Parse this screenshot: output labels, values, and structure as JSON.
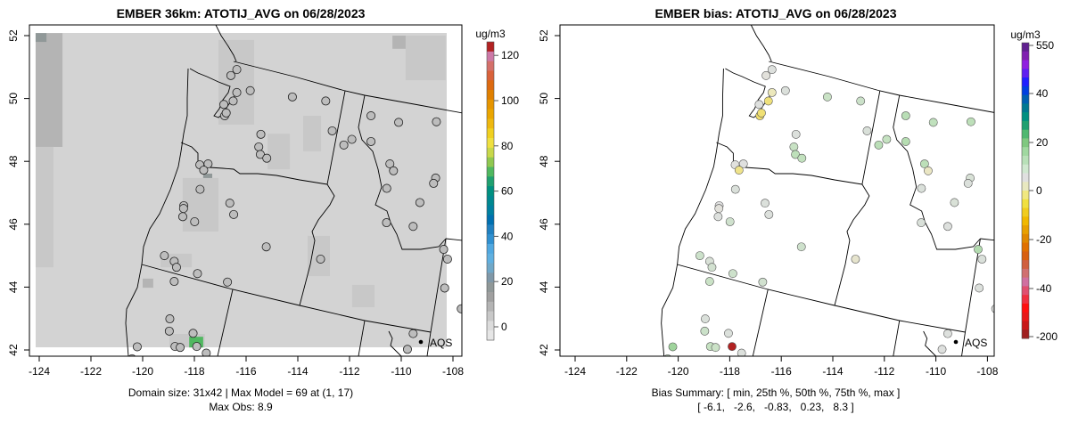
{
  "chart_data": [
    {
      "type": "scatter",
      "subtype": "gridded-map-with-stations",
      "title": "EMBER 36km: ATOTIJ_AVG on 06/28/2023",
      "xlabel": "",
      "ylabel": "",
      "xlim": [
        -124,
        -108
      ],
      "ylim": [
        42,
        52
      ],
      "x_ticks": [
        "-124",
        "-122",
        "-120",
        "-118",
        "-116",
        "-114",
        "-112",
        "-110",
        "-108"
      ],
      "y_ticks": [
        "42",
        "44",
        "46",
        "48",
        "50",
        "52"
      ],
      "colorbar": {
        "unit": "ug/m3",
        "range": [
          -6,
          126
        ],
        "ticks": [
          "0",
          "20",
          "40",
          "60",
          "80",
          "100",
          "120"
        ],
        "palette": [
          "#e6e6e6",
          "#dcdcdc",
          "#c8c8c8",
          "#b4b4b4",
          "#a0a0a0",
          "#909898",
          "#8098a8",
          "#70a8c8",
          "#60b0e0",
          "#50a8e0",
          "#3090d0",
          "#2080c0",
          "#0070b0",
          "#0080a0",
          "#008890",
          "#009080",
          "#20a070",
          "#50b860",
          "#90c850",
          "#c8d84a",
          "#efe040",
          "#f0d020",
          "#eeb810",
          "#eaa600",
          "#e69500",
          "#e08000",
          "#dd6a10",
          "#d9623b",
          "#d4706a",
          "#cc79a7",
          "#b22222"
        ]
      },
      "grid_background_value": 1,
      "model_cells": [
        [
          -124.14,
          48.46,
          -123.1,
          52.08,
          7
        ],
        [
          -124.14,
          44.63,
          -123.45,
          48.46,
          6
        ],
        [
          -124.14,
          51.8,
          -123.72,
          52.08,
          18
        ],
        [
          -117.07,
          49.17,
          -115.69,
          51.86,
          6
        ],
        [
          -117.66,
          47.33,
          -117.31,
          47.61,
          18
        ],
        [
          -118.97,
          42.08,
          -117.59,
          42.51,
          6
        ],
        [
          -118.2,
          42.08,
          -117.66,
          42.42,
          69
        ],
        [
          -120.0,
          43.98,
          -119.59,
          44.27,
          10
        ],
        [
          -109.83,
          50.58,
          -108.28,
          52.0,
          5
        ],
        [
          -110.34,
          51.58,
          -109.83,
          52.0,
          8
        ],
        [
          -113.79,
          48.32,
          -113.1,
          49.45,
          5
        ],
        [
          -115.17,
          47.75,
          -114.31,
          48.88,
          5
        ],
        [
          -113.62,
          44.35,
          -112.76,
          45.63,
          5
        ],
        [
          -111.9,
          43.36,
          -111.03,
          44.07,
          5
        ],
        [
          -118.45,
          45.77,
          -117.07,
          47.47,
          5
        ],
        [
          -119.31,
          44.63,
          -118.1,
          45.06,
          5
        ]
      ],
      "legend": {
        "label": "AQS",
        "placement": "bottom-right"
      },
      "footer": [
        "Domain size: 31x42 | Max Model = 69 at (1, 17)",
        "Max Obs: 8.9"
      ]
    },
    {
      "type": "scatter",
      "subtype": "station-bias-map",
      "title": "EMBER bias: ATOTIJ_AVG on 06/28/2023",
      "xlim": [
        -124,
        -108
      ],
      "ylim": [
        42,
        52
      ],
      "x_ticks": [
        "-124",
        "-122",
        "-120",
        "-118",
        "-116",
        "-114",
        "-112",
        "-110",
        "-108"
      ],
      "y_ticks": [
        "42",
        "44",
        "46",
        "48",
        "50",
        "52"
      ],
      "colorbar": {
        "unit": "ug/m3",
        "ticks": [
          "550",
          "40",
          "20",
          "0",
          "-20",
          "-40",
          "-200"
        ],
        "palette": [
          "#a02020",
          "#c81818",
          "#e81818",
          "#ff1010",
          "#f03040",
          "#e05070",
          "#d070a0",
          "#d07070",
          "#d06040",
          "#d86010",
          "#e07000",
          "#e08800",
          "#e8a000",
          "#f0b800",
          "#f0cc20",
          "#f0e040",
          "#f0e880",
          "#e8e8c0",
          "#e0e0e0",
          "#d0e8d0",
          "#b8e0b8",
          "#a0d8a0",
          "#80c880",
          "#50b870",
          "#20a070",
          "#009080",
          "#007890",
          "#0060b0",
          "#0040e0",
          "#2020ff",
          "#6020f0",
          "#9020e0",
          "#8020b0",
          "#602090"
        ]
      },
      "bias_color_stops": [
        [
          -6.1,
          "#9fd49c"
        ],
        [
          -3,
          "#c4e2c0"
        ],
        [
          0,
          "#e0e0e0"
        ],
        [
          1.5,
          "#ece8bc"
        ],
        [
          5,
          "#f0e070"
        ],
        [
          6.5,
          "#f0d040"
        ],
        [
          8.3,
          "#b22222"
        ]
      ],
      "legend": {
        "label": "AQS",
        "placement": "bottom-right"
      },
      "footer": [
        "Bias Summary: [ min, 25th %, 50th %, 75th %, max ]",
        "[ -6.1,   -2.6,   -0.83,   0.23,   8.3 ]"
      ],
      "bias_summary": {
        "min": -6.1,
        "p25": -2.6,
        "p50": -0.83,
        "p75": 0.23,
        "max": 8.3
      }
    }
  ],
  "stations": [
    [
      -116.36,
      50.92,
      -0.3
    ],
    [
      -115.84,
      50.25,
      -0.5
    ],
    [
      -116.36,
      50.19,
      1.5
    ],
    [
      -116.59,
      50.73,
      0.2
    ],
    [
      -116.5,
      49.92,
      4.5
    ],
    [
      -116.86,
      49.81,
      -0.2
    ],
    [
      -116.83,
      49.45,
      5.2
    ],
    [
      -116.77,
      49.54,
      4.8
    ],
    [
      -114.21,
      50.05,
      -2.5
    ],
    [
      -112.92,
      49.92,
      -2.2
    ],
    [
      -115.43,
      48.86,
      -0.4
    ],
    [
      -115.51,
      48.46,
      -2.6
    ],
    [
      -115.45,
      48.22,
      -3.5
    ],
    [
      -115.2,
      48.1,
      -3.2
    ],
    [
      -117.79,
      47.89,
      0.1
    ],
    [
      -117.47,
      47.92,
      -0.1
    ],
    [
      -117.64,
      47.72,
      3.8
    ],
    [
      -117.78,
      47.11,
      -0.6
    ],
    [
      -118.41,
      46.59,
      0.0
    ],
    [
      -118.42,
      46.5,
      0.2
    ],
    [
      -118.45,
      46.24,
      -0.3
    ],
    [
      -117.99,
      46.08,
      -1.8
    ],
    [
      -116.63,
      46.67,
      -0.5
    ],
    [
      -116.48,
      46.31,
      -0.4
    ],
    [
      -115.22,
      45.28,
      -1.9
    ],
    [
      -119.16,
      45.0,
      -2.1
    ],
    [
      -118.78,
      44.82,
      -0.8
    ],
    [
      -118.69,
      44.63,
      -1.5
    ],
    [
      -117.88,
      44.43,
      -2.0
    ],
    [
      -118.78,
      44.18,
      -2.4
    ],
    [
      -116.72,
      44.16,
      -1.6
    ],
    [
      -112.67,
      48.97,
      -0.7
    ],
    [
      -112.22,
      48.52,
      -3.8
    ],
    [
      -111.91,
      48.7,
      -2.9
    ],
    [
      -111.17,
      49.45,
      -3.9
    ],
    [
      -111.17,
      48.63,
      -4.2
    ],
    [
      -110.1,
      49.24,
      -3.3
    ],
    [
      -108.64,
      49.26,
      -3.6
    ],
    [
      -110.44,
      47.92,
      -3.7
    ],
    [
      -110.3,
      47.7,
      1.2
    ],
    [
      -108.67,
      47.47,
      -0.9
    ],
    [
      -108.75,
      47.3,
      -0.5
    ],
    [
      -110.56,
      47.14,
      -0.6
    ],
    [
      -109.28,
      46.69,
      -0.8
    ],
    [
      -110.57,
      46.05,
      -0.7
    ],
    [
      -109.54,
      45.93,
      -0.3
    ],
    [
      -108.36,
      45.2,
      -4.5
    ],
    [
      -108.21,
      44.89,
      -0.6
    ],
    [
      -108.32,
      43.97,
      -0.4
    ],
    [
      -107.68,
      43.31,
      -0.2
    ],
    [
      -113.12,
      44.89,
      0.8
    ],
    [
      -118.95,
      42.99,
      -0.6
    ],
    [
      -118.97,
      42.6,
      -2.2
    ],
    [
      -118.05,
      42.53,
      -0.5
    ],
    [
      -118.75,
      42.11,
      -2.8
    ],
    [
      -118.55,
      42.08,
      -2.3
    ],
    [
      -117.91,
      42.11,
      8.3
    ],
    [
      -117.54,
      41.9,
      -0.4
    ],
    [
      -120.21,
      42.1,
      -6.1
    ],
    [
      -109.54,
      42.52,
      -0.3
    ],
    [
      -109.76,
      42.02,
      -0.2
    ],
    [
      -120.41,
      41.72,
      -2.7
    ]
  ],
  "station_obs_color": "#bdbdbd",
  "aqs_label": "AQS"
}
